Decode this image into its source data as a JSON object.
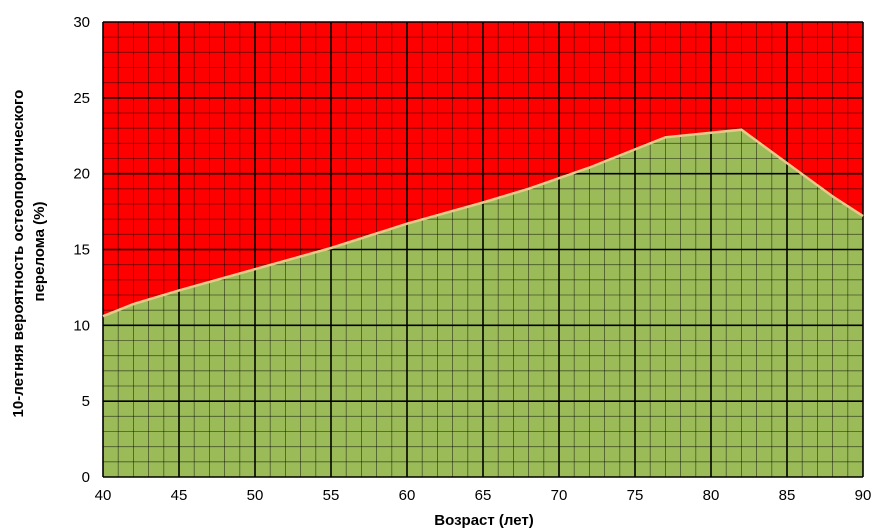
{
  "chart_data": {
    "type": "area",
    "xlabel": "Возраст (лет)",
    "ylabel_lines": [
      "10-летняя вероятность остеопоротического",
      "перелома (%)"
    ],
    "xlim": [
      40,
      90
    ],
    "ylim": [
      0,
      30
    ],
    "x_ticks": [
      40,
      45,
      50,
      55,
      60,
      65,
      70,
      75,
      80,
      85,
      90
    ],
    "y_ticks": [
      0,
      5,
      10,
      15,
      20,
      25,
      30
    ],
    "minor_x_step": 1,
    "minor_y_step": 1,
    "grid": true,
    "colors": {
      "upper_region": "#ff0000",
      "lower_region": "#9bbb59",
      "boundary_line": "#e8c98a",
      "major_grid": "#000000",
      "minor_grid": "#000000"
    },
    "series": [
      {
        "x": [
          40,
          42,
          45,
          50,
          55,
          60,
          65,
          68,
          72,
          75,
          77,
          80,
          82,
          85,
          88,
          90
        ],
        "values": [
          10.6,
          11.4,
          12.3,
          13.7,
          15.1,
          16.7,
          18.1,
          19.0,
          20.4,
          21.6,
          22.4,
          22.7,
          22.9,
          20.7,
          18.5,
          17.2
        ]
      }
    ]
  }
}
